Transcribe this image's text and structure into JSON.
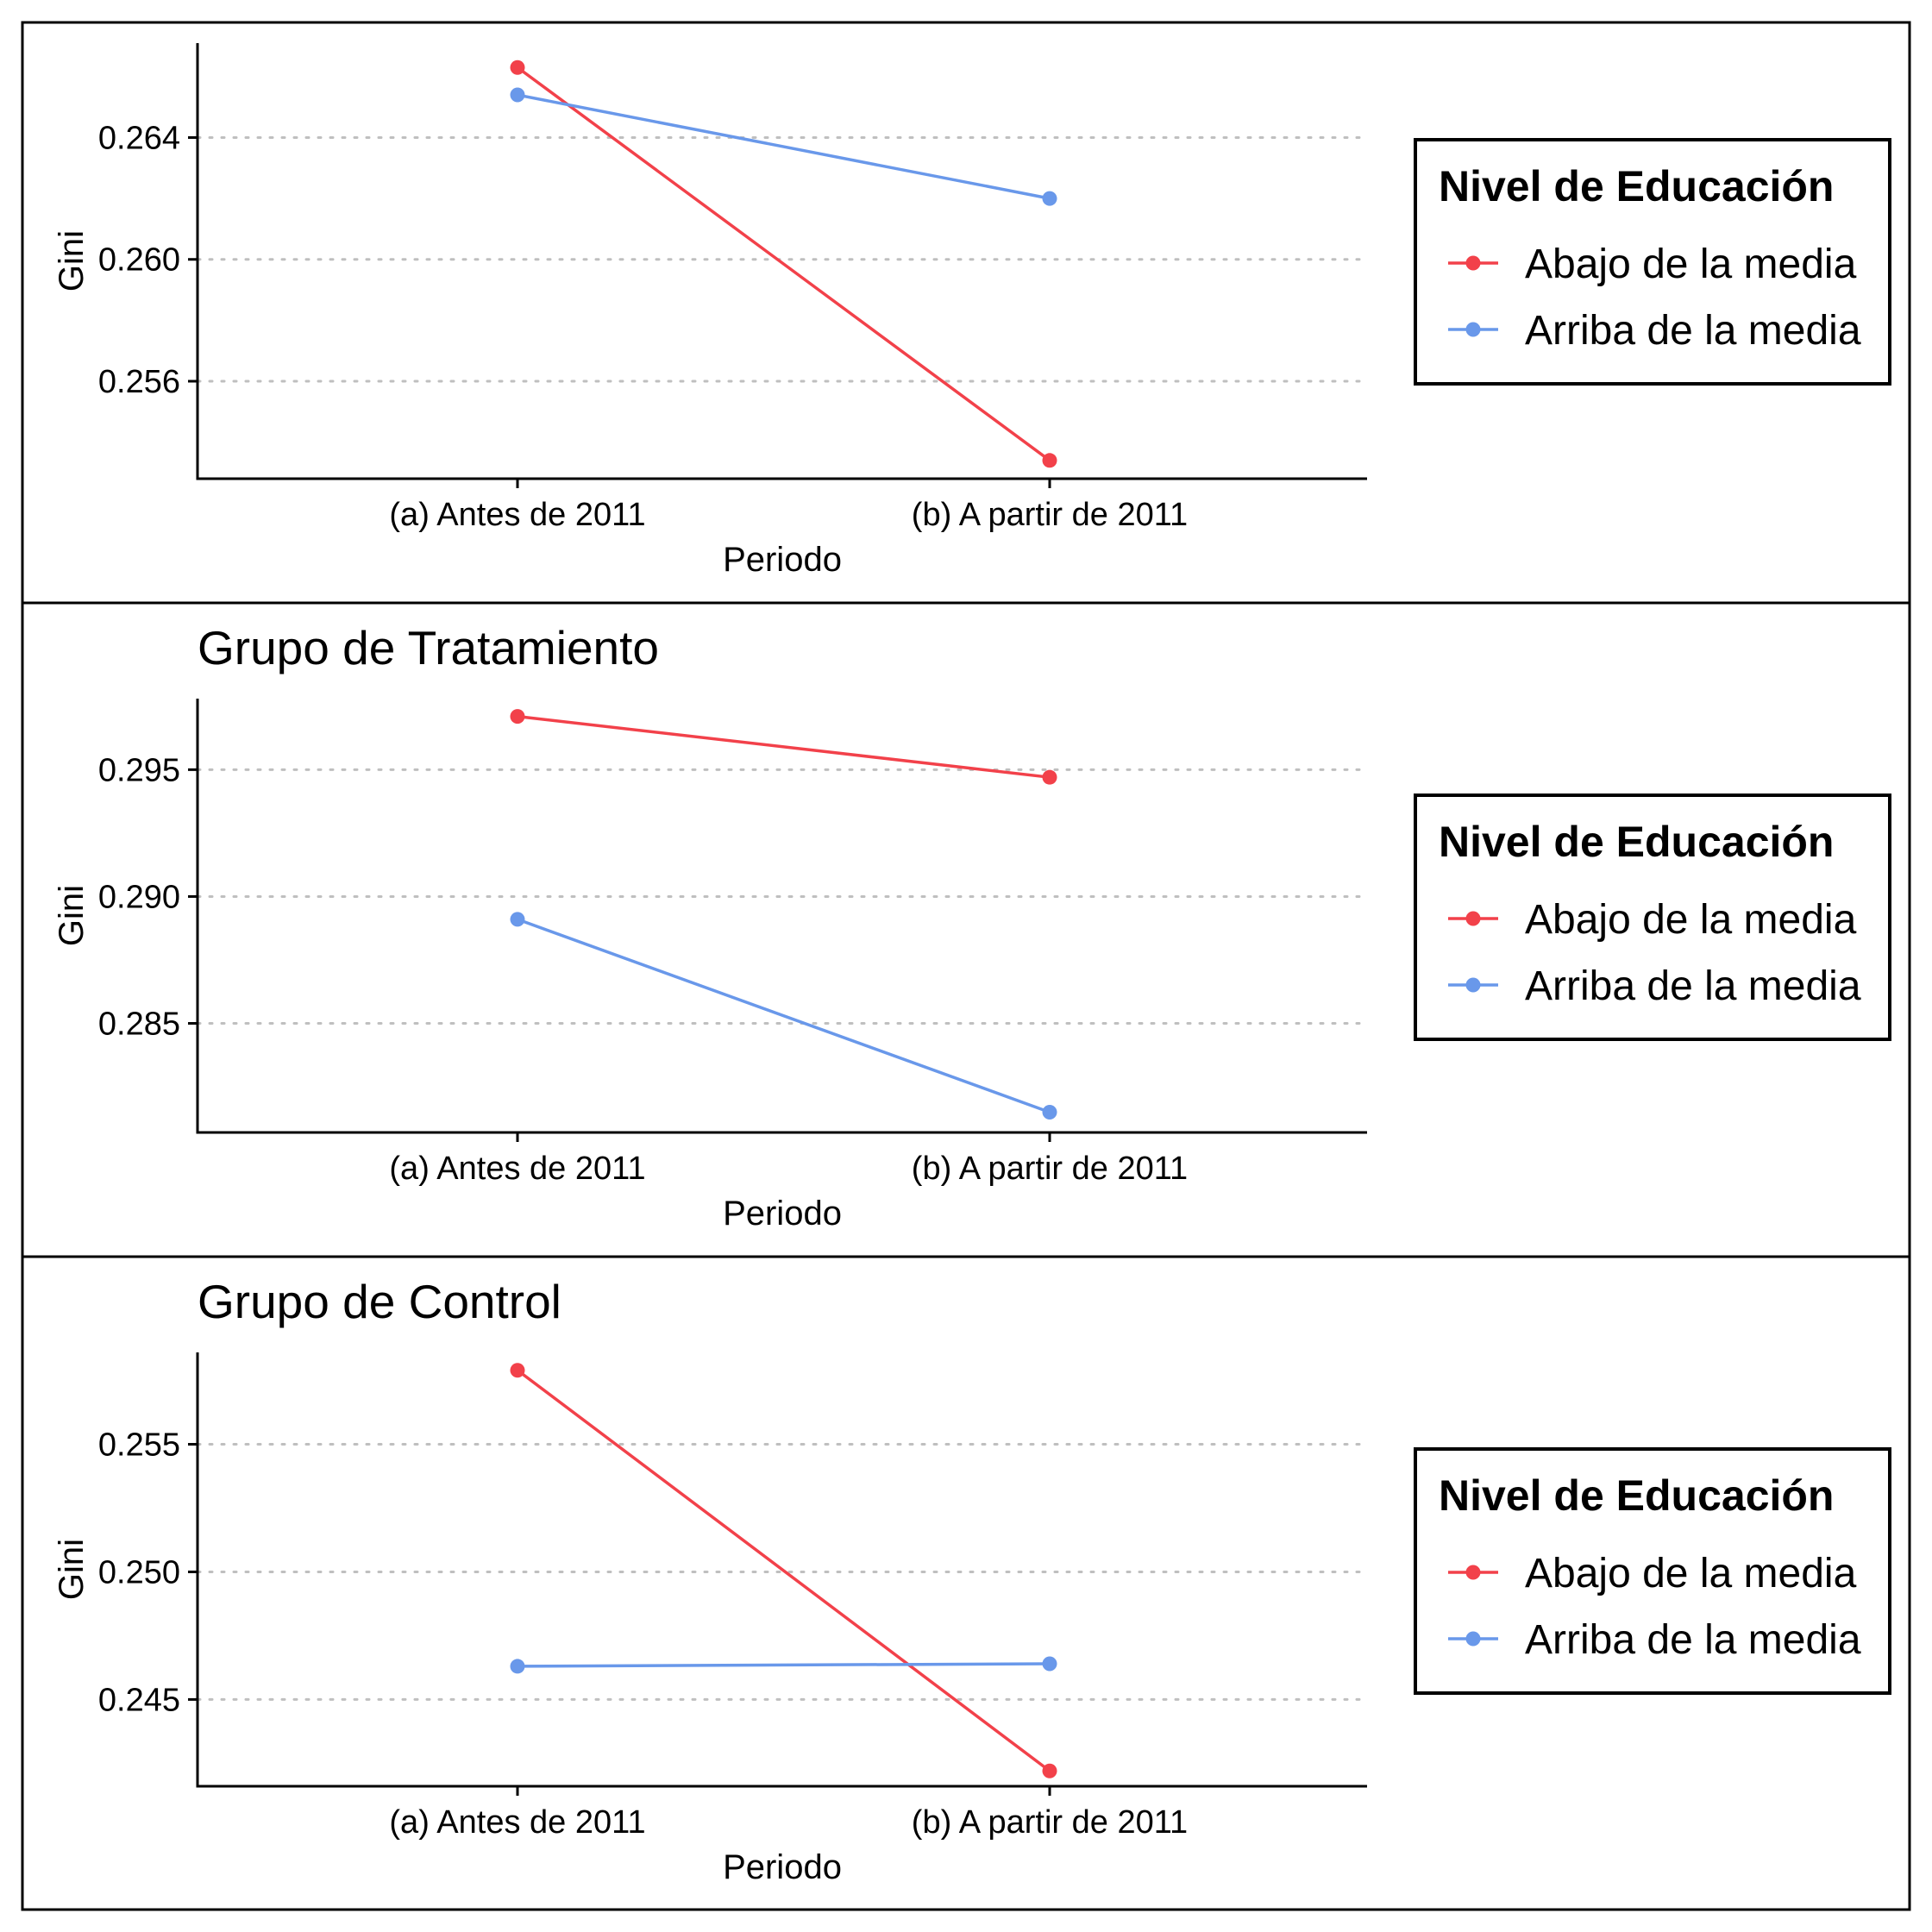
{
  "colors": {
    "below": "#f2414a",
    "above": "#6998ea",
    "grid": "#bfbfbf",
    "axis": "#000000"
  },
  "chart_data": [
    {
      "type": "line",
      "title": "",
      "xlabel": "Periodo",
      "ylabel": "Gini",
      "categories": [
        "(a) Antes de 2011",
        "(b) A partir de 2011"
      ],
      "ylim": [
        0.2528,
        0.2671
      ],
      "yticks": [
        0.256,
        0.26,
        0.264
      ],
      "ytick_labels": [
        "0.256",
        "0.260",
        "0.264"
      ],
      "grid": "horizontal dotted",
      "legend": {
        "title": "Nivel de Educación",
        "placement": "right",
        "entries": [
          "Abajo de la media",
          "Arriba de la media"
        ]
      },
      "series": [
        {
          "name": "Abajo de la media",
          "color_key": "below",
          "values": [
            0.2663,
            0.2534
          ]
        },
        {
          "name": "Arriba de la media",
          "color_key": "above",
          "values": [
            0.2654,
            0.262
          ]
        }
      ]
    },
    {
      "type": "line",
      "title": "Grupo de Tratamiento",
      "xlabel": "Periodo",
      "ylabel": "Gini",
      "categories": [
        "(a) Antes de 2011",
        "(b) A partir de 2011"
      ],
      "ylim": [
        0.2807,
        0.2978
      ],
      "yticks": [
        0.285,
        0.29,
        0.295
      ],
      "ytick_labels": [
        "0.285",
        "0.290",
        "0.295"
      ],
      "grid": "horizontal dotted",
      "legend": {
        "title": "Nivel de Educación",
        "placement": "right",
        "entries": [
          "Abajo de la media",
          "Arriba de la media"
        ]
      },
      "series": [
        {
          "name": "Abajo de la media",
          "color_key": "below",
          "values": [
            0.2971,
            0.2947
          ]
        },
        {
          "name": "Arriba de la media",
          "color_key": "above",
          "values": [
            0.2891,
            0.2815
          ]
        }
      ]
    },
    {
      "type": "line",
      "title": "Grupo de Control",
      "xlabel": "Periodo",
      "ylabel": "Gini",
      "categories": [
        "(a) Antes de 2011",
        "(b) A partir de 2011"
      ],
      "ylim": [
        0.2416,
        0.2586
      ],
      "yticks": [
        0.245,
        0.25,
        0.255
      ],
      "ytick_labels": [
        "0.245",
        "0.250",
        "0.255"
      ],
      "grid": "horizontal dotted",
      "legend": {
        "title": "Nivel de Educación",
        "placement": "right",
        "entries": [
          "Abajo de la media",
          "Arriba de la media"
        ]
      },
      "series": [
        {
          "name": "Abajo de la media",
          "color_key": "below",
          "values": [
            0.2579,
            0.2422
          ]
        },
        {
          "name": "Arriba de la media",
          "color_key": "above",
          "values": [
            0.2463,
            0.2464
          ]
        }
      ]
    }
  ]
}
